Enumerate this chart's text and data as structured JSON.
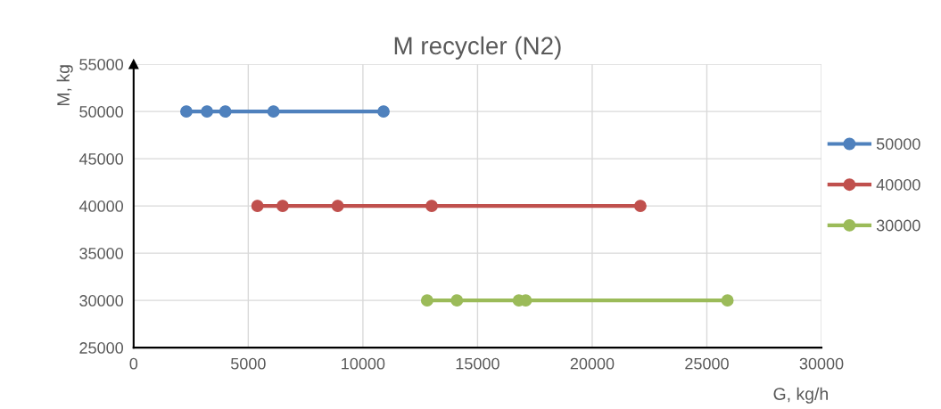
{
  "chart_data": {
    "type": "line",
    "title": "M recycler (N2)",
    "xlabel": "G, kg/h",
    "ylabel": "M, kg",
    "series": [
      {
        "name": "50000",
        "color": "#4f81bd",
        "x": [
          2300,
          3200,
          4000,
          6100,
          10900
        ],
        "values": [
          50000,
          50000,
          50000,
          50000,
          50000
        ]
      },
      {
        "name": "40000",
        "color": "#c0504d",
        "x": [
          5400,
          6500,
          8900,
          13000,
          22100
        ],
        "values": [
          40000,
          40000,
          40000,
          40000,
          40000
        ]
      },
      {
        "name": "30000",
        "color": "#9bbb59",
        "x": [
          12800,
          14100,
          16800,
          17100,
          25900
        ],
        "values": [
          30000,
          30000,
          30000,
          30000,
          30000
        ]
      }
    ],
    "xlim": [
      0,
      30000
    ],
    "xticks": [
      0,
      5000,
      10000,
      15000,
      20000,
      25000,
      30000
    ],
    "ylim": [
      25000,
      55000
    ],
    "yticks": [
      25000,
      30000,
      35000,
      40000,
      45000,
      50000,
      55000
    ],
    "grid": true,
    "legend": "right",
    "marker": "circle",
    "line_style": "solid"
  }
}
